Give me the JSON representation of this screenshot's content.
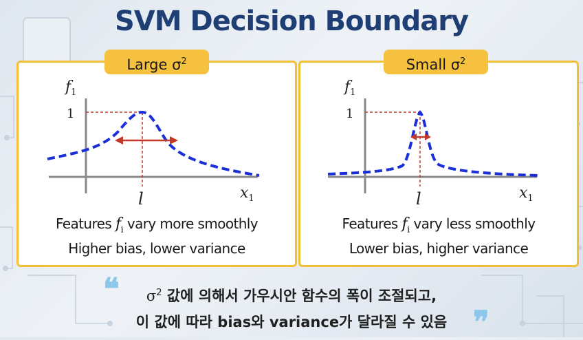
{
  "title": "SVM Decision Boundary",
  "panels": [
    {
      "tag": "Large σ",
      "tag_sup": "2",
      "y_axis_label": "f",
      "y_axis_sub": "1",
      "x_axis_label": "x",
      "x_axis_sub": "1",
      "peak_value": "1",
      "landmark_label": "l",
      "caption_prefix": "Features ",
      "caption_var": "f",
      "caption_var_sub": "i",
      "caption_suffix": " vary more smoothly",
      "caption2": "Higher bias, lower variance"
    },
    {
      "tag": "Small σ",
      "tag_sup": "2",
      "y_axis_label": "f",
      "y_axis_sub": "1",
      "x_axis_label": "x",
      "x_axis_sub": "1",
      "peak_value": "1",
      "landmark_label": "l",
      "caption_prefix": "Features ",
      "caption_var": "f",
      "caption_var_sub": "i",
      "caption_suffix": " vary less smoothly",
      "caption2": "Lower bias, higher variance"
    }
  ],
  "quote": {
    "line1_sigma": "σ",
    "line1_sup": "2",
    "line1_text": " 값에 의해서 가우시안 함수의 폭이 조절되고,",
    "line2": "이 값에 따라 bias와 variance가 달라질 수 있음",
    "open_mark": "❝",
    "close_mark": "❞"
  },
  "colors": {
    "title": "#1f3e73",
    "accent": "#f5c13e",
    "curve": "#1a2fd6",
    "guide": "#c0392b",
    "quote_marks": "#8cc6ea"
  }
}
